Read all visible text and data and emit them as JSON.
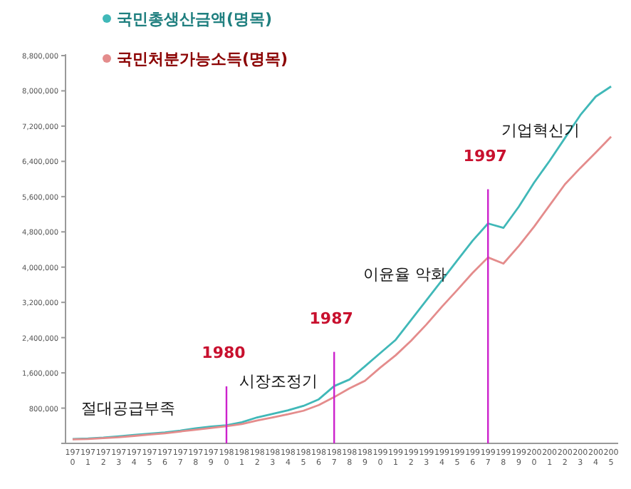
{
  "chart_data": {
    "type": "line",
    "categories": [
      "1970",
      "1971",
      "1972",
      "1973",
      "1974",
      "1975",
      "1976",
      "1977",
      "1978",
      "1979",
      "1980",
      "1981",
      "1982",
      "1983",
      "1984",
      "1985",
      "1986",
      "1987",
      "1988",
      "1989",
      "1990",
      "1991",
      "1992",
      "1993",
      "1994",
      "1995",
      "1996",
      "1997",
      "1998",
      "1999",
      "2000",
      "2001",
      "2002",
      "2003",
      "2004",
      "2005"
    ],
    "series": [
      {
        "name": "국민총생산금액(명목)",
        "color": "#40b8b8",
        "values": [
          100000,
          110000,
          130000,
          160000,
          190000,
          220000,
          250000,
          290000,
          340000,
          380000,
          410000,
          480000,
          590000,
          670000,
          750000,
          850000,
          1000000,
          1300000,
          1450000,
          1750000,
          2050000,
          2350000,
          2800000,
          3250000,
          3700000,
          4150000,
          4600000,
          4990000,
          4890000,
          5370000,
          5920000,
          6410000,
          6930000,
          7450000,
          7870000,
          8100000
        ]
      },
      {
        "name": "국민처분가능소득(명목)",
        "color": "#e48c8c",
        "values": [
          90000,
          100000,
          120000,
          140000,
          170000,
          200000,
          230000,
          270000,
          310000,
          350000,
          390000,
          440000,
          520000,
          590000,
          660000,
          740000,
          870000,
          1050000,
          1250000,
          1420000,
          1720000,
          2000000,
          2330000,
          2700000,
          3100000,
          3480000,
          3870000,
          4220000,
          4080000,
          4480000,
          4920000,
          5400000,
          5880000,
          6250000,
          6600000,
          6960000
        ]
      }
    ],
    "ylim": [
      0,
      8800000
    ],
    "yticks": [
      {
        "value": 0,
        "label": null
      },
      {
        "value": 800000,
        "label": "800,000"
      },
      {
        "value": 1600000,
        "label": "1,600,000"
      },
      {
        "value": 2400000,
        "label": "2,400,000"
      },
      {
        "value": 3200000,
        "label": "3,200,000"
      },
      {
        "value": 4000000,
        "label": "4,000,000"
      },
      {
        "value": 4800000,
        "label": "4,800,000"
      },
      {
        "value": 5600000,
        "label": "5,600,000"
      },
      {
        "value": 6400000,
        "label": "6,400,000"
      },
      {
        "value": 7200000,
        "label": "7,200,000"
      },
      {
        "value": 8000000,
        "label": "8,000,000"
      },
      {
        "value": 8800000,
        "label": "8,800,000"
      }
    ],
    "grid": false,
    "legend": "top left",
    "marker": "none",
    "line_style": "solid",
    "ref_lines": [
      {
        "axis": "x",
        "value": "1980",
        "label": "1980",
        "color": "#cc22cc"
      },
      {
        "axis": "x",
        "value": "1987",
        "label": "1987",
        "color": "#cc22cc"
      },
      {
        "axis": "x",
        "value": "1997",
        "label": "1997",
        "color": "#cc22cc"
      }
    ],
    "annotations": [
      "절대공급부족",
      "시장조정기",
      "이윤율 악화",
      "기업혁신기"
    ]
  }
}
